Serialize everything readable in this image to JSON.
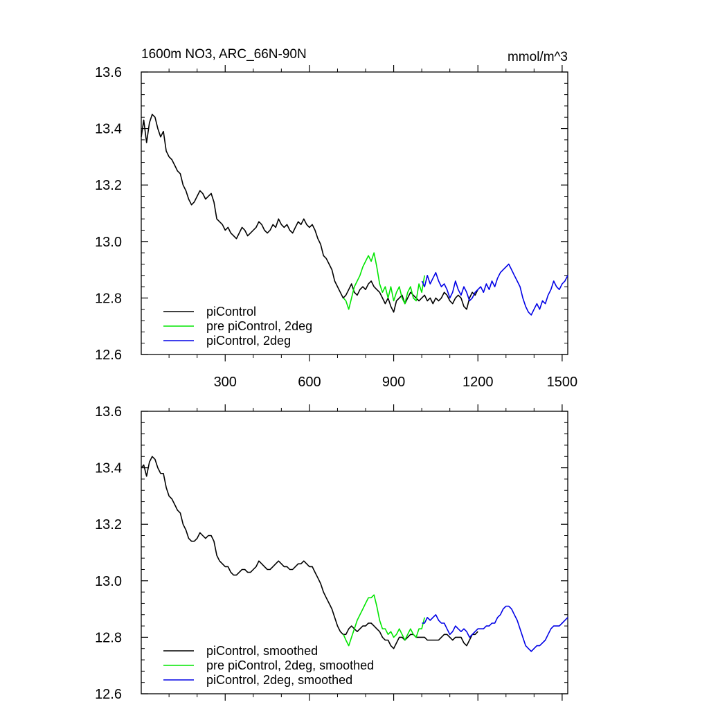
{
  "title_left": "1600m NO3, ARC_66N-90N",
  "title_right": "mmol/m^3",
  "colors": {
    "piControl": "#000000",
    "pre_2deg": "#00e600",
    "pi_2deg": "#0000e6"
  },
  "chart_data": [
    {
      "type": "line",
      "panel": "top",
      "title": "1600m NO3, ARC_66N-90N",
      "units": "mmol/m^3",
      "xlim": [
        1,
        1520
      ],
      "ylim": [
        12.6,
        13.6
      ],
      "x_ticks": [
        300,
        600,
        900,
        1200,
        1500
      ],
      "x_tick_labels": [
        "300",
        "600",
        "900",
        "1200",
        "1500"
      ],
      "y_ticks": [
        12.6,
        12.8,
        13.0,
        13.2,
        13.4,
        13.6
      ],
      "y_tick_labels": [
        "12.6",
        "12.8",
        "13.0",
        "13.2",
        "13.4",
        "13.6"
      ],
      "grid": false,
      "legend_position": "bottom-left",
      "series": [
        {
          "name": "piControl",
          "color": "#000000",
          "x": [
            1,
            10,
            20,
            30,
            40,
            50,
            60,
            70,
            80,
            90,
            100,
            110,
            120,
            130,
            140,
            150,
            160,
            170,
            180,
            190,
            200,
            210,
            220,
            230,
            240,
            250,
            260,
            270,
            280,
            290,
            300,
            310,
            320,
            330,
            340,
            350,
            360,
            370,
            380,
            390,
            400,
            410,
            420,
            430,
            440,
            450,
            460,
            470,
            480,
            490,
            500,
            510,
            520,
            530,
            540,
            550,
            560,
            570,
            580,
            590,
            600,
            610,
            620,
            630,
            640,
            650,
            660,
            670,
            680,
            690,
            700,
            710,
            720,
            730,
            740,
            750,
            760,
            770,
            780,
            790,
            800,
            810,
            820,
            830,
            840,
            850,
            860,
            870,
            880,
            890,
            900,
            910,
            920,
            930,
            940,
            950,
            960,
            970,
            980,
            990,
            1000,
            1010,
            1020,
            1030,
            1040,
            1050,
            1060,
            1070,
            1080,
            1090,
            1100,
            1110,
            1120,
            1130,
            1140,
            1150,
            1160,
            1170,
            1180,
            1190,
            1200
          ],
          "y": [
            13.37,
            13.43,
            13.35,
            13.42,
            13.45,
            13.44,
            13.4,
            13.37,
            13.39,
            13.32,
            13.3,
            13.29,
            13.27,
            13.25,
            13.24,
            13.2,
            13.18,
            13.15,
            13.13,
            13.14,
            13.16,
            13.18,
            13.17,
            13.15,
            13.16,
            13.17,
            13.14,
            13.08,
            13.07,
            13.06,
            13.04,
            13.05,
            13.03,
            13.02,
            13.01,
            13.03,
            13.05,
            13.04,
            13.02,
            13.03,
            13.04,
            13.05,
            13.07,
            13.06,
            13.04,
            13.03,
            13.04,
            13.06,
            13.05,
            13.08,
            13.06,
            13.05,
            13.06,
            13.04,
            13.03,
            13.05,
            13.07,
            13.06,
            13.08,
            13.06,
            13.05,
            13.06,
            13.04,
            13.01,
            12.99,
            12.95,
            12.94,
            12.92,
            12.9,
            12.86,
            12.84,
            12.82,
            12.8,
            12.81,
            12.83,
            12.85,
            12.82,
            12.81,
            12.83,
            12.84,
            12.83,
            12.85,
            12.86,
            12.84,
            12.83,
            12.82,
            12.8,
            12.78,
            12.8,
            12.77,
            12.75,
            12.79,
            12.8,
            12.81,
            12.78,
            12.8,
            12.82,
            12.81,
            12.8,
            12.79,
            12.8,
            12.81,
            12.79,
            12.8,
            12.78,
            12.8,
            12.79,
            12.8,
            12.82,
            12.81,
            12.79,
            12.78,
            12.8,
            12.81,
            12.8,
            12.77,
            12.76,
            12.8,
            12.82,
            12.81,
            12.83
          ]
        },
        {
          "name": "pre piControl, 2deg",
          "color": "#00e600",
          "x": [
            721,
            730,
            740,
            750,
            760,
            770,
            780,
            790,
            800,
            810,
            820,
            830,
            840,
            850,
            860,
            870,
            880,
            890,
            900,
            910,
            920,
            930,
            940,
            950,
            960,
            970,
            980,
            990,
            1000,
            1010
          ],
          "y": [
            12.8,
            12.79,
            12.76,
            12.8,
            12.84,
            12.86,
            12.88,
            12.91,
            12.93,
            12.95,
            12.93,
            12.96,
            12.91,
            12.85,
            12.82,
            12.84,
            12.8,
            12.84,
            12.79,
            12.82,
            12.84,
            12.8,
            12.78,
            12.82,
            12.84,
            12.8,
            12.79,
            12.85,
            12.82,
            12.88
          ]
        },
        {
          "name": "piControl, 2deg",
          "color": "#0000e6",
          "x": [
            1001,
            1010,
            1020,
            1030,
            1040,
            1050,
            1060,
            1070,
            1080,
            1090,
            1100,
            1110,
            1120,
            1130,
            1140,
            1150,
            1160,
            1170,
            1180,
            1190,
            1200,
            1210,
            1220,
            1230,
            1240,
            1250,
            1260,
            1270,
            1280,
            1290,
            1300,
            1310,
            1320,
            1330,
            1340,
            1350,
            1360,
            1370,
            1380,
            1390,
            1400,
            1410,
            1420,
            1430,
            1440,
            1450,
            1460,
            1470,
            1480,
            1490,
            1500,
            1510,
            1520
          ],
          "y": [
            12.86,
            12.84,
            12.88,
            12.85,
            12.87,
            12.89,
            12.86,
            12.84,
            12.85,
            12.83,
            12.8,
            12.82,
            12.86,
            12.83,
            12.81,
            12.84,
            12.82,
            12.79,
            12.8,
            12.82,
            12.83,
            12.84,
            12.82,
            12.85,
            12.83,
            12.86,
            12.84,
            12.87,
            12.89,
            12.9,
            12.91,
            12.92,
            12.9,
            12.88,
            12.86,
            12.84,
            12.8,
            12.77,
            12.75,
            12.74,
            12.76,
            12.78,
            12.76,
            12.79,
            12.78,
            12.81,
            12.83,
            12.86,
            12.84,
            12.83,
            12.85,
            12.86,
            12.88
          ]
        }
      ]
    },
    {
      "type": "line",
      "panel": "bottom",
      "xlim": [
        1,
        1520
      ],
      "ylim": [
        12.6,
        13.6
      ],
      "y_ticks": [
        12.6,
        12.8,
        13.0,
        13.2,
        13.4,
        13.6
      ],
      "y_tick_labels": [
        "12.6",
        "12.8",
        "13.0",
        "13.2",
        "13.4",
        "13.6"
      ],
      "grid": false,
      "legend_position": "bottom-left",
      "series": [
        {
          "name": "piControl, smoothed",
          "color": "#000000",
          "x": [
            1,
            10,
            20,
            30,
            40,
            50,
            60,
            70,
            80,
            90,
            100,
            110,
            120,
            130,
            140,
            150,
            160,
            170,
            180,
            190,
            200,
            210,
            220,
            230,
            240,
            250,
            260,
            270,
            280,
            290,
            300,
            310,
            320,
            330,
            340,
            350,
            360,
            370,
            380,
            390,
            400,
            410,
            420,
            430,
            440,
            450,
            460,
            470,
            480,
            490,
            500,
            510,
            520,
            530,
            540,
            550,
            560,
            570,
            580,
            590,
            600,
            610,
            620,
            630,
            640,
            650,
            660,
            670,
            680,
            690,
            700,
            710,
            720,
            730,
            740,
            750,
            760,
            770,
            780,
            790,
            800,
            810,
            820,
            830,
            840,
            850,
            860,
            870,
            880,
            890,
            900,
            910,
            920,
            930,
            940,
            950,
            960,
            970,
            980,
            990,
            1000,
            1010,
            1020,
            1030,
            1040,
            1050,
            1060,
            1070,
            1080,
            1090,
            1100,
            1110,
            1120,
            1130,
            1140,
            1150,
            1160,
            1170,
            1180,
            1190,
            1200
          ],
          "y": [
            13.4,
            13.41,
            13.37,
            13.42,
            13.44,
            13.43,
            13.4,
            13.38,
            13.38,
            13.33,
            13.3,
            13.29,
            13.27,
            13.25,
            13.24,
            13.2,
            13.18,
            13.15,
            13.14,
            13.14,
            13.15,
            13.17,
            13.16,
            13.15,
            13.16,
            13.16,
            13.14,
            13.09,
            13.07,
            13.06,
            13.05,
            13.05,
            13.03,
            13.02,
            13.02,
            13.03,
            13.04,
            13.04,
            13.03,
            13.03,
            13.04,
            13.05,
            13.07,
            13.06,
            13.05,
            13.04,
            13.04,
            13.05,
            13.06,
            13.07,
            13.06,
            13.05,
            13.05,
            13.04,
            13.04,
            13.05,
            13.06,
            13.06,
            13.07,
            13.06,
            13.05,
            13.05,
            13.03,
            13.01,
            12.99,
            12.96,
            12.94,
            12.92,
            12.9,
            12.87,
            12.84,
            12.82,
            12.81,
            12.81,
            12.83,
            12.84,
            12.83,
            12.82,
            12.83,
            12.84,
            12.84,
            12.85,
            12.85,
            12.84,
            12.83,
            12.82,
            12.8,
            12.79,
            12.79,
            12.77,
            12.76,
            12.78,
            12.8,
            12.8,
            12.79,
            12.8,
            12.81,
            12.81,
            12.8,
            12.8,
            12.8,
            12.8,
            12.79,
            12.79,
            12.79,
            12.79,
            12.79,
            12.8,
            12.81,
            12.81,
            12.8,
            12.79,
            12.8,
            12.8,
            12.8,
            12.78,
            12.77,
            12.79,
            12.81,
            12.81,
            12.82
          ]
        },
        {
          "name": "pre piControl, 2deg, smoothed",
          "color": "#00e600",
          "x": [
            721,
            730,
            740,
            750,
            760,
            770,
            780,
            790,
            800,
            810,
            820,
            830,
            840,
            850,
            860,
            870,
            880,
            890,
            900,
            910,
            920,
            930,
            940,
            950,
            960,
            970,
            980,
            990,
            1000,
            1010
          ],
          "y": [
            12.81,
            12.79,
            12.77,
            12.8,
            12.83,
            12.86,
            12.88,
            12.9,
            12.92,
            12.94,
            12.94,
            12.95,
            12.91,
            12.86,
            12.83,
            12.83,
            12.81,
            12.82,
            12.8,
            12.81,
            12.83,
            12.81,
            12.79,
            12.81,
            12.83,
            12.81,
            12.8,
            12.83,
            12.83,
            12.87
          ]
        },
        {
          "name": "piControl, 2deg, smoothed",
          "color": "#0000e6",
          "x": [
            1001,
            1010,
            1020,
            1030,
            1040,
            1050,
            1060,
            1070,
            1080,
            1090,
            1100,
            1110,
            1120,
            1130,
            1140,
            1150,
            1160,
            1170,
            1180,
            1190,
            1200,
            1210,
            1220,
            1230,
            1240,
            1250,
            1260,
            1270,
            1280,
            1290,
            1300,
            1310,
            1320,
            1330,
            1340,
            1350,
            1360,
            1370,
            1380,
            1390,
            1400,
            1410,
            1420,
            1430,
            1440,
            1450,
            1460,
            1470,
            1480,
            1490,
            1500,
            1510,
            1520
          ],
          "y": [
            12.85,
            12.85,
            12.87,
            12.86,
            12.87,
            12.88,
            12.86,
            12.85,
            12.85,
            12.83,
            12.81,
            12.82,
            12.84,
            12.83,
            12.82,
            12.83,
            12.82,
            12.8,
            12.81,
            12.82,
            12.83,
            12.83,
            12.83,
            12.84,
            12.84,
            12.85,
            12.85,
            12.87,
            12.88,
            12.9,
            12.91,
            12.91,
            12.9,
            12.88,
            12.86,
            12.83,
            12.8,
            12.77,
            12.76,
            12.75,
            12.76,
            12.77,
            12.77,
            12.78,
            12.79,
            12.81,
            12.83,
            12.84,
            12.84,
            12.84,
            12.85,
            12.86,
            12.87
          ]
        }
      ]
    }
  ]
}
